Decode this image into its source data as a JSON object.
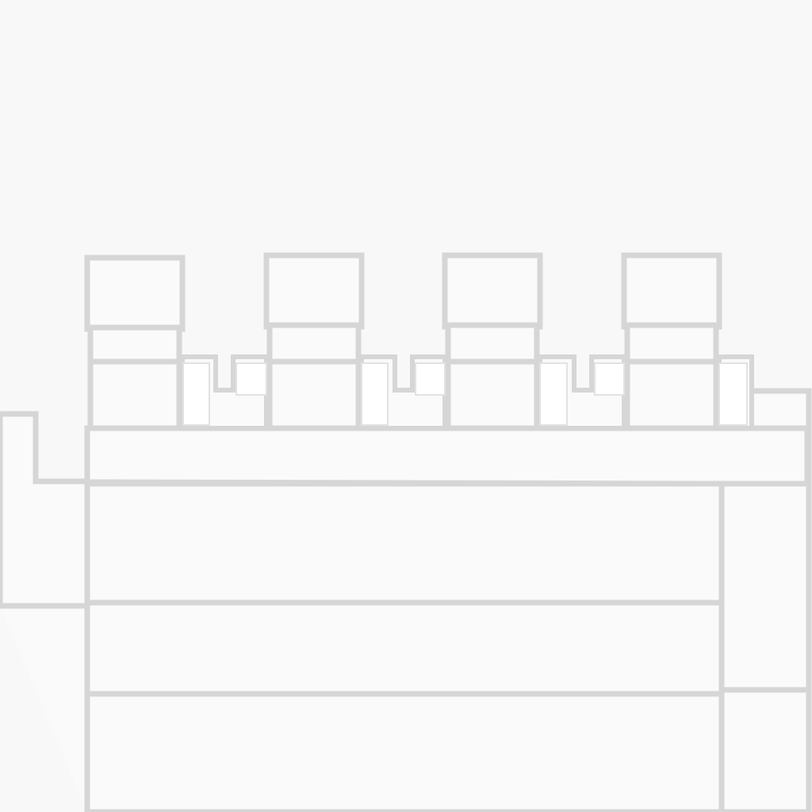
{
  "scene": {
    "background_color": "#f8f8f8",
    "outline_color": "#d6d6d6",
    "fill_color": "#fafafa",
    "style": "white clay block structure with grey edges",
    "visible_text": [],
    "objects": [
      "left-step-block",
      "main-body-block",
      "right-side-block",
      "bottom-row-blocks",
      "turret-1",
      "turret-2",
      "turret-3",
      "turret-4",
      "connector-blocks"
    ]
  }
}
